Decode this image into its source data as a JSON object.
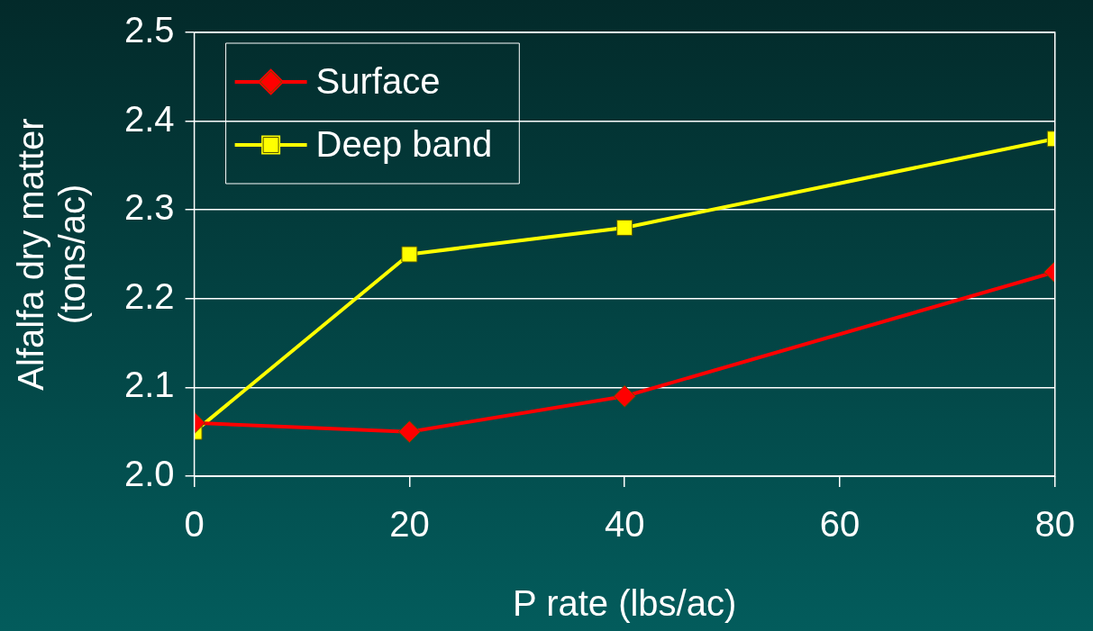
{
  "chart_data": {
    "type": "line",
    "xlabel": "P rate (lbs/ac)",
    "ylabel": "Alfalfa dry matter\n(tons/ac)",
    "x": [
      0,
      20,
      40,
      80
    ],
    "series": [
      {
        "name": "Surface",
        "color": "#ff0000",
        "marker": "diamond",
        "values": [
          2.06,
          2.05,
          2.09,
          2.23
        ]
      },
      {
        "name": "Deep band",
        "color": "#ffff00",
        "marker": "square",
        "values": [
          2.05,
          2.25,
          2.28,
          2.38
        ]
      }
    ],
    "xlim": [
      0,
      80
    ],
    "xticks": [
      0,
      20,
      40,
      60,
      80
    ],
    "ylim": [
      2.0,
      2.5
    ],
    "yticks": [
      {
        "value": 2.0,
        "label": "2.0"
      },
      {
        "value": 2.1,
        "label": "2.1"
      },
      {
        "value": 2.2,
        "label": "2.2"
      },
      {
        "value": 2.3,
        "label": "2.3"
      },
      {
        "value": 2.4,
        "label": "2.4"
      },
      {
        "value": 2.5,
        "label": "2.5"
      }
    ],
    "grid": "y",
    "legend": "top left",
    "line_style": "solid"
  }
}
